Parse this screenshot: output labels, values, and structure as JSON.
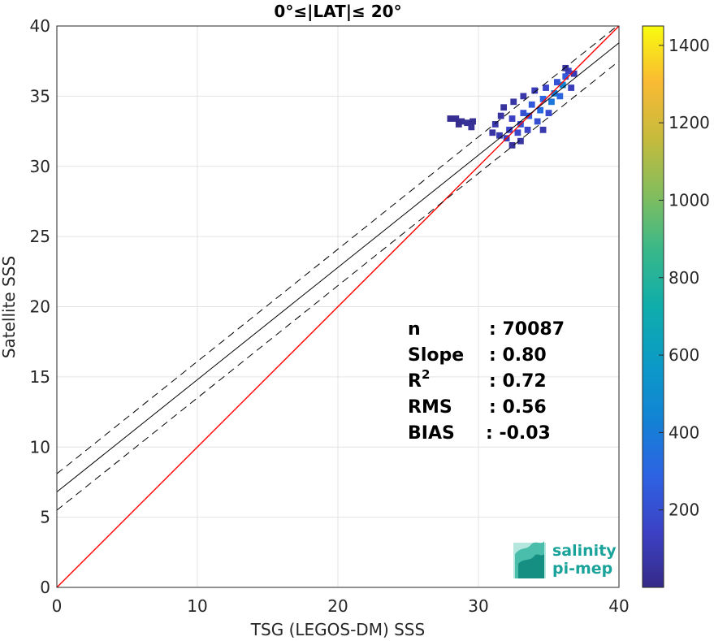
{
  "chart_data": {
    "type": "heatmap",
    "title": "0°≤|LAT|≤ 20°",
    "xlabel": "TSG (LEGOS-DM) SSS",
    "ylabel": "Satellite SSS",
    "xlim": [
      0,
      40
    ],
    "ylim": [
      0,
      40
    ],
    "grid": true,
    "x_ticks": [
      "0",
      "10",
      "20",
      "30",
      "40"
    ],
    "y_ticks": [
      "0",
      "5",
      "10",
      "15",
      "20",
      "25",
      "30",
      "35",
      "40"
    ],
    "lines": [
      {
        "name": "identity",
        "color": "#ff0000",
        "style": "solid",
        "x": [
          0,
          40
        ],
        "y": [
          0,
          40
        ]
      },
      {
        "name": "regression",
        "color": "#000000",
        "style": "solid",
        "x": [
          0,
          40
        ],
        "y": [
          6.8,
          38.8
        ]
      },
      {
        "name": "regression-upper",
        "color": "#000000",
        "style": "dashed",
        "x": [
          0,
          40
        ],
        "y": [
          8.1,
          40.1
        ]
      },
      {
        "name": "regression-lower",
        "color": "#000000",
        "style": "dashed",
        "x": [
          0,
          40
        ],
        "y": [
          5.5,
          37.5
        ]
      }
    ],
    "density_cells": [
      {
        "x": 28.0,
        "y": 33.4,
        "count": 20
      },
      {
        "x": 28.4,
        "y": 33.4,
        "count": 25
      },
      {
        "x": 28.8,
        "y": 33.2,
        "count": 30
      },
      {
        "x": 29.2,
        "y": 33.1,
        "count": 35
      },
      {
        "x": 28.6,
        "y": 33.0,
        "count": 20
      },
      {
        "x": 29.5,
        "y": 32.8,
        "count": 40
      },
      {
        "x": 29.6,
        "y": 33.2,
        "count": 30
      },
      {
        "x": 31.0,
        "y": 32.4,
        "count": 60
      },
      {
        "x": 31.2,
        "y": 33.0,
        "count": 80
      },
      {
        "x": 31.5,
        "y": 32.2,
        "count": 90
      },
      {
        "x": 31.6,
        "y": 33.6,
        "count": 60
      },
      {
        "x": 31.8,
        "y": 34.2,
        "count": 50
      },
      {
        "x": 32.0,
        "y": 32.0,
        "count": 120
      },
      {
        "x": 32.2,
        "y": 32.6,
        "count": 150
      },
      {
        "x": 32.4,
        "y": 33.4,
        "count": 140
      },
      {
        "x": 32.5,
        "y": 34.6,
        "count": 70
      },
      {
        "x": 32.8,
        "y": 32.4,
        "count": 160
      },
      {
        "x": 33.0,
        "y": 33.0,
        "count": 220
      },
      {
        "x": 33.2,
        "y": 33.8,
        "count": 200
      },
      {
        "x": 33.2,
        "y": 35.0,
        "count": 80
      },
      {
        "x": 33.5,
        "y": 32.6,
        "count": 150
      },
      {
        "x": 33.6,
        "y": 33.6,
        "count": 280
      },
      {
        "x": 33.8,
        "y": 34.4,
        "count": 240
      },
      {
        "x": 34.0,
        "y": 35.4,
        "count": 110
      },
      {
        "x": 34.2,
        "y": 33.2,
        "count": 200
      },
      {
        "x": 34.4,
        "y": 34.0,
        "count": 320
      },
      {
        "x": 34.6,
        "y": 34.8,
        "count": 300
      },
      {
        "x": 34.8,
        "y": 35.6,
        "count": 150
      },
      {
        "x": 35.0,
        "y": 33.8,
        "count": 180
      },
      {
        "x": 35.2,
        "y": 34.6,
        "count": 380
      },
      {
        "x": 35.4,
        "y": 35.2,
        "count": 420
      },
      {
        "x": 35.6,
        "y": 36.0,
        "count": 220
      },
      {
        "x": 35.8,
        "y": 35.0,
        "count": 300
      },
      {
        "x": 36.0,
        "y": 35.8,
        "count": 460
      },
      {
        "x": 36.2,
        "y": 36.4,
        "count": 260
      },
      {
        "x": 36.4,
        "y": 36.8,
        "count": 140
      },
      {
        "x": 36.6,
        "y": 35.6,
        "count": 120
      },
      {
        "x": 36.8,
        "y": 36.6,
        "count": 100
      },
      {
        "x": 36.2,
        "y": 37.0,
        "count": 60
      },
      {
        "x": 34.6,
        "y": 32.6,
        "count": 90
      },
      {
        "x": 33.0,
        "y": 31.8,
        "count": 70
      },
      {
        "x": 32.4,
        "y": 31.5,
        "count": 40
      }
    ],
    "colorbar": {
      "colormap": "parula",
      "range": [
        0,
        1450
      ],
      "ticks": [
        "200",
        "400",
        "600",
        "800",
        "1000",
        "1200",
        "1400"
      ]
    },
    "stats": [
      {
        "label": "n",
        "value": ": 70087"
      },
      {
        "label": "Slope",
        "value": ": 0.80"
      },
      {
        "label": "R",
        "sup": "2",
        "value": ": 0.72"
      },
      {
        "label": "RMS",
        "value": ": 0.56"
      },
      {
        "label": "BIAS",
        "value": ": -0.03"
      }
    ]
  },
  "logo": {
    "line1": "salinity",
    "line2": "pi-mep",
    "color": "#1aa39a"
  }
}
